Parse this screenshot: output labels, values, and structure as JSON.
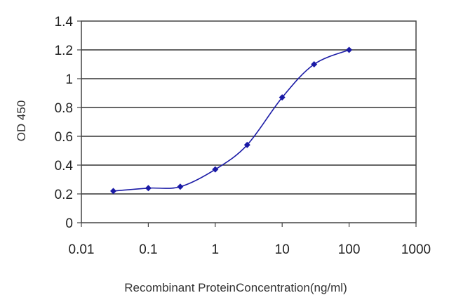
{
  "chart_data": {
    "type": "line",
    "title": "",
    "xlabel": "Recombinant ProteinConcentration(ng/ml)",
    "ylabel": "OD 450",
    "x_scale": "log",
    "xlim": [
      0.01,
      1000
    ],
    "ylim": [
      0,
      1.4
    ],
    "x_ticks": [
      0.01,
      0.1,
      1,
      10,
      100,
      1000
    ],
    "x_tick_labels": [
      "0.01",
      "0.1",
      "1",
      "10",
      "100",
      "1000"
    ],
    "y_ticks": [
      0,
      0.2,
      0.4,
      0.6,
      0.8,
      1,
      1.2,
      1.4
    ],
    "y_tick_labels": [
      "0",
      "0.2",
      "0.4",
      "0.6",
      "0.8",
      "1",
      "1.2",
      "1.4"
    ],
    "grid": "horizontal",
    "legend": "none",
    "series": [
      {
        "color": "#1a1aa6",
        "x": [
          0.03,
          0.1,
          0.3,
          1,
          3,
          10,
          30,
          100
        ],
        "y": [
          0.22,
          0.24,
          0.25,
          0.37,
          0.54,
          0.87,
          1.1,
          1.2
        ]
      }
    ]
  }
}
